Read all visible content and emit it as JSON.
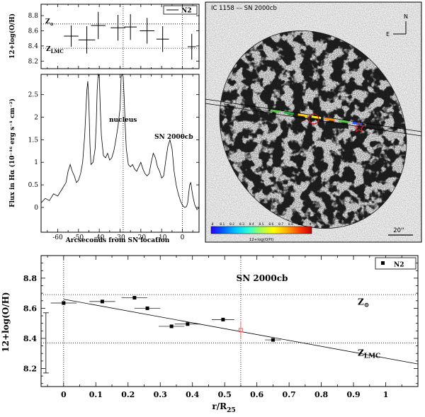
{
  "chart_data": [
    {
      "type": "scatter",
      "panel": "top-left metallicity vs offset",
      "ylabel": "12+log(O/H)",
      "xlim": [
        -68,
        8
      ],
      "ylim": [
        8.1,
        8.95
      ],
      "yticks": [
        "8.2",
        "8.4",
        "8.6",
        "8.8"
      ],
      "legend": "N2",
      "legend_position": "top-right",
      "ref_lines": [
        {
          "label": "Z",
          "sub": "⊙",
          "y": 8.69
        },
        {
          "label": "Z",
          "sub": "LMC",
          "y": 8.37
        }
      ],
      "series": [
        {
          "name": "N2",
          "x": [
            -53.5,
            -46,
            -40.5,
            -31,
            -25,
            -17,
            -9.5,
            4.5
          ],
          "y": [
            8.53,
            8.48,
            8.67,
            8.64,
            8.65,
            8.6,
            8.49,
            8.39
          ],
          "xerr": [
            3.5,
            4,
            3.5,
            3.5,
            3,
            3.5,
            3,
            2
          ],
          "yerr": [
            0.14,
            0.18,
            0.18,
            0.17,
            0.17,
            0.17,
            0.17,
            0.17
          ]
        }
      ],
      "vlines": [
        -28.5,
        0
      ]
    },
    {
      "type": "line",
      "panel": "bottom-left H-alpha profile",
      "xlabel": "Arcseconds from SN location",
      "ylabel": "Flux in Hα (10⁻¹⁶ erg s⁻¹ cm⁻²)",
      "xlim": [
        -68,
        8
      ],
      "ylim": [
        -0.55,
        2.95
      ],
      "xticks": [
        "-60",
        "-50",
        "-40",
        "-30",
        "-20",
        "-10",
        "0"
      ],
      "yticks": [
        "0",
        "0.5",
        "1",
        "1.5",
        "2",
        "2.5"
      ],
      "annotations": [
        "nucleus",
        "SN 2000cb"
      ],
      "x": [
        -68,
        -66,
        -64,
        -62,
        -60,
        -58,
        -56,
        -55,
        -54,
        -53,
        -52,
        -51,
        -50,
        -49,
        -48,
        -47,
        -46,
        -45.5,
        -45,
        -44.5,
        -44,
        -43,
        -42,
        -41.5,
        -41,
        -40.5,
        -40,
        -39.5,
        -39,
        -38,
        -37,
        -36,
        -35,
        -34,
        -33,
        -32,
        -31,
        -30,
        -29.5,
        -29,
        -28.5,
        -28,
        -27.5,
        -27,
        -26,
        -25,
        -24,
        -23,
        -22,
        -21,
        -20,
        -19,
        -18,
        -17,
        -16,
        -15,
        -14,
        -13,
        -12,
        -11,
        -10,
        -9,
        -8,
        -7,
        -6,
        -5,
        -4,
        -3,
        -2,
        -1,
        0,
        1,
        2,
        2.5,
        3,
        3.5,
        4,
        5,
        6,
        7,
        8
      ],
      "y": [
        0.1,
        0.2,
        0.15,
        0.3,
        0.25,
        0.4,
        0.55,
        0.8,
        0.95,
        0.8,
        0.7,
        0.55,
        0.6,
        0.75,
        1.0,
        1.6,
        2.6,
        2.8,
        2.3,
        1.4,
        0.95,
        1.0,
        1.3,
        1.8,
        2.6,
        2.95,
        2.9,
        2.2,
        1.6,
        1.15,
        1.1,
        1.2,
        1.05,
        1.1,
        1.25,
        1.5,
        1.8,
        2.2,
        2.9,
        2.95,
        2.9,
        2.4,
        1.8,
        1.3,
        0.95,
        0.9,
        0.95,
        0.85,
        0.8,
        0.9,
        1.0,
        0.85,
        0.75,
        0.7,
        0.75,
        1.0,
        1.2,
        1.1,
        0.9,
        0.8,
        0.65,
        0.7,
        1.05,
        1.35,
        1.5,
        1.3,
        0.8,
        0.5,
        0.3,
        0.15,
        0.05,
        0.0,
        0.02,
        0.1,
        0.3,
        0.5,
        0.55,
        0.25,
        0.05,
        -0.05,
        0.0
      ]
    },
    {
      "type": "scatter",
      "panel": "bottom metallicity gradient",
      "xlabel": "r/R",
      "xlabel_sub": "25",
      "ylabel": "12+log(O/H)",
      "xlim": [
        -0.07,
        1.1
      ],
      "ylim": [
        8.08,
        8.95
      ],
      "xticks": [
        "0",
        "0.1",
        "0.2",
        "0.3",
        "0.4",
        "0.5",
        "0.6",
        "0.7",
        "0.8",
        "0.9",
        "1"
      ],
      "yticks": [
        "8.2",
        "8.4",
        "8.6",
        "8.8"
      ],
      "legend": "N2",
      "legend_position": "top-right",
      "annotations": [
        "SN 2000cb"
      ],
      "ref_lines": [
        {
          "label": "Z",
          "sub": "⊙",
          "y": 8.69
        },
        {
          "label": "Z",
          "sub": "LMC",
          "y": 8.37
        }
      ],
      "sn_x": 0.55,
      "fit": {
        "x": [
          0,
          1.1
        ],
        "y": [
          8.66,
          8.23
        ]
      },
      "systematic_error": {
        "x": -0.055,
        "y": [
          8.17,
          8.57
        ]
      },
      "series": [
        {
          "name": "N2",
          "x": [
            0.0,
            0.12,
            0.22,
            0.26,
            0.335,
            0.385,
            0.495,
            0.65
          ],
          "y": [
            8.635,
            8.645,
            8.67,
            8.6,
            8.48,
            8.495,
            8.525,
            8.39
          ],
          "xerr": [
            0.04,
            0.04,
            0.04,
            0.04,
            0.04,
            0.04,
            0.035,
            0.025
          ]
        },
        {
          "name": "SN site",
          "x": [
            0.55
          ],
          "y": [
            8.455
          ],
          "yerr": [
            0.06
          ],
          "color": "#ff5a5a"
        }
      ]
    }
  ],
  "image_panel": {
    "title": "IC 1158 –– SN 2000cb",
    "compass": {
      "north": "N",
      "east": "E"
    },
    "scale_bar": "20''",
    "colorbar_label": "12+log(O/H)",
    "colorbar_ticks": [
      "8",
      "8.1",
      "8.2",
      "8.3",
      "8.4",
      "8.5",
      "8.6",
      "8.7",
      "8.8",
      "8.9",
      "9"
    ],
    "slit_colors": [
      "#55cc44",
      "#22aa33",
      "#ffcc00",
      "#ffee22",
      "#ff8800",
      "#55cc44",
      "#2255ff"
    ],
    "sn_marker_color": "#e0222a",
    "nucleus_marker_color": "#d01010"
  }
}
